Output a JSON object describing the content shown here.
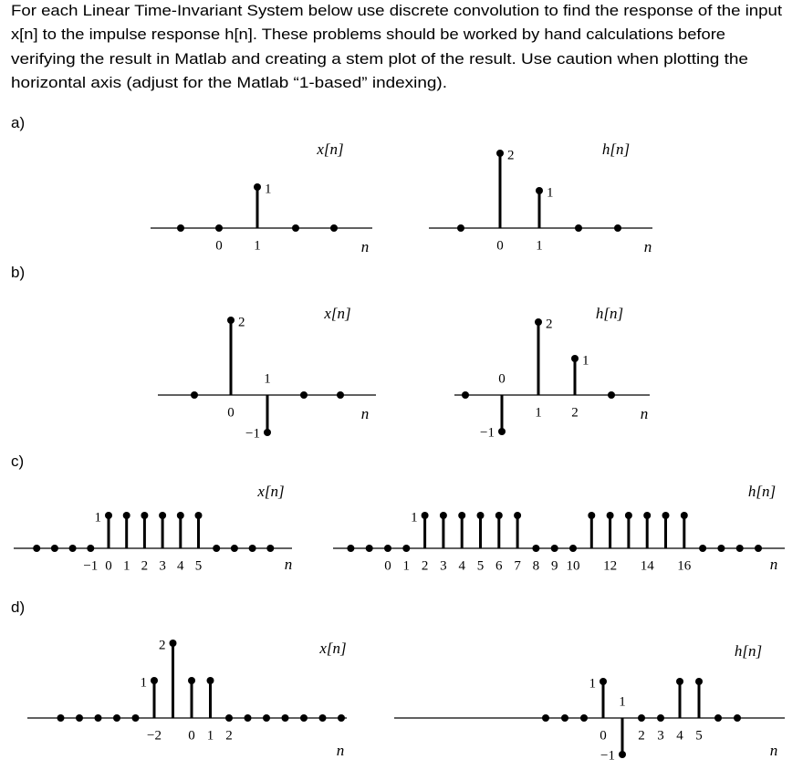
{
  "intro": [
    "For each Linear Time-Invariant System below use discrete convolution to find the response of the input",
    "x[n] to the impulse response h[n].  These problems should be worked by hand calculations before",
    "verifying the result in Matlab and creating a stem plot of the result.  Use caution when plotting the",
    "horizontal axis (adjust for the Matlab “1-based” indexing)."
  ],
  "problems": [
    {
      "label": "a)",
      "plots": [
        {
          "title": "x[n]",
          "axis_label": "n",
          "n": [
            -1,
            0,
            1,
            2,
            3
          ],
          "values": [
            0,
            0,
            1,
            0,
            0
          ],
          "value_labels": [
            null,
            null,
            "1",
            null,
            null
          ],
          "ticks": [
            0,
            1
          ]
        },
        {
          "title": "h[n]",
          "axis_label": "n",
          "n": [
            -1,
            0,
            1,
            2,
            3
          ],
          "values": [
            0,
            2,
            1,
            0,
            0
          ],
          "value_labels": [
            null,
            "2",
            "1",
            null,
            null
          ],
          "ticks": [
            0,
            1
          ]
        }
      ]
    },
    {
      "label": "b)",
      "plots": [
        {
          "title": "x[n]",
          "axis_label": "n",
          "n": [
            -1,
            0,
            1,
            2,
            3
          ],
          "values": [
            0,
            2,
            -1,
            0,
            0
          ],
          "value_labels": [
            null,
            "2",
            "−1",
            null,
            null
          ],
          "ticks": [
            0,
            1
          ]
        },
        {
          "title": "h[n]",
          "axis_label": "n",
          "n": [
            -1,
            0,
            1,
            2,
            3
          ],
          "values": [
            0,
            -1,
            2,
            1,
            0
          ],
          "value_labels": [
            null,
            "−1",
            "2",
            "1",
            null
          ],
          "ticks": [
            0,
            1,
            2
          ]
        }
      ]
    },
    {
      "label": "c)",
      "plots": [
        {
          "title": "x[n]",
          "axis_label": "n",
          "n": [
            -4,
            -3,
            -2,
            -1,
            0,
            1,
            2,
            3,
            4,
            5,
            6,
            7,
            8,
            9
          ],
          "values": [
            0,
            0,
            0,
            0,
            1,
            1,
            1,
            1,
            1,
            1,
            0,
            0,
            0,
            0
          ],
          "value_labels": [
            null,
            null,
            null,
            null,
            "1",
            null,
            null,
            null,
            null,
            null,
            null,
            null,
            null,
            null
          ],
          "ticks": [
            {
              "value": -1,
              "label": "−1"
            },
            0,
            1,
            2,
            3,
            4,
            5
          ]
        },
        {
          "title": "h[n]",
          "axis_label": "n",
          "n": [
            -2,
            -1,
            0,
            1,
            2,
            3,
            4,
            5,
            6,
            7,
            8,
            9,
            10,
            11,
            12,
            13,
            14,
            15,
            16,
            17,
            18,
            19,
            20
          ],
          "values": [
            0,
            0,
            0,
            0,
            1,
            1,
            1,
            1,
            1,
            1,
            0,
            0,
            0,
            1,
            1,
            1,
            1,
            1,
            1,
            0,
            0,
            0,
            0
          ],
          "value_labels": [
            null,
            null,
            null,
            null,
            "1",
            null,
            null,
            null,
            null,
            null,
            null,
            null,
            null,
            null,
            null,
            null,
            null,
            null,
            null,
            null,
            null,
            null,
            null
          ],
          "ticks": [
            0,
            1,
            2,
            3,
            4,
            5,
            6,
            7,
            8,
            9,
            10,
            12,
            14,
            16
          ]
        }
      ]
    },
    {
      "label": "d)",
      "plots": [
        {
          "title": "x[n]",
          "axis_label": "n",
          "n": [
            -7,
            -6,
            -5,
            -4,
            -3,
            -2,
            -1,
            0,
            1,
            2,
            3,
            4,
            5,
            6,
            7,
            8
          ],
          "values": [
            0,
            0,
            0,
            0,
            0,
            1,
            2,
            1,
            1,
            0,
            0,
            0,
            0,
            0,
            0,
            0
          ],
          "value_labels": [
            null,
            null,
            null,
            null,
            null,
            "1",
            "2",
            null,
            null,
            null,
            null,
            null,
            null,
            null,
            null,
            null
          ],
          "ticks": [
            {
              "value": -2,
              "label": "−2"
            },
            0,
            1,
            2
          ]
        },
        {
          "title": "h[n]",
          "axis_label": "n",
          "n": [
            -3,
            -2,
            -1,
            0,
            1,
            2,
            3,
            4,
            5,
            6,
            7
          ],
          "values": [
            0,
            0,
            0,
            1,
            -1,
            0,
            0,
            1,
            1,
            0,
            0
          ],
          "value_labels": [
            null,
            null,
            null,
            "1",
            "−1",
            null,
            null,
            null,
            null,
            null,
            null
          ],
          "ticks": [
            0,
            1,
            2,
            3,
            4,
            5
          ]
        }
      ]
    }
  ]
}
